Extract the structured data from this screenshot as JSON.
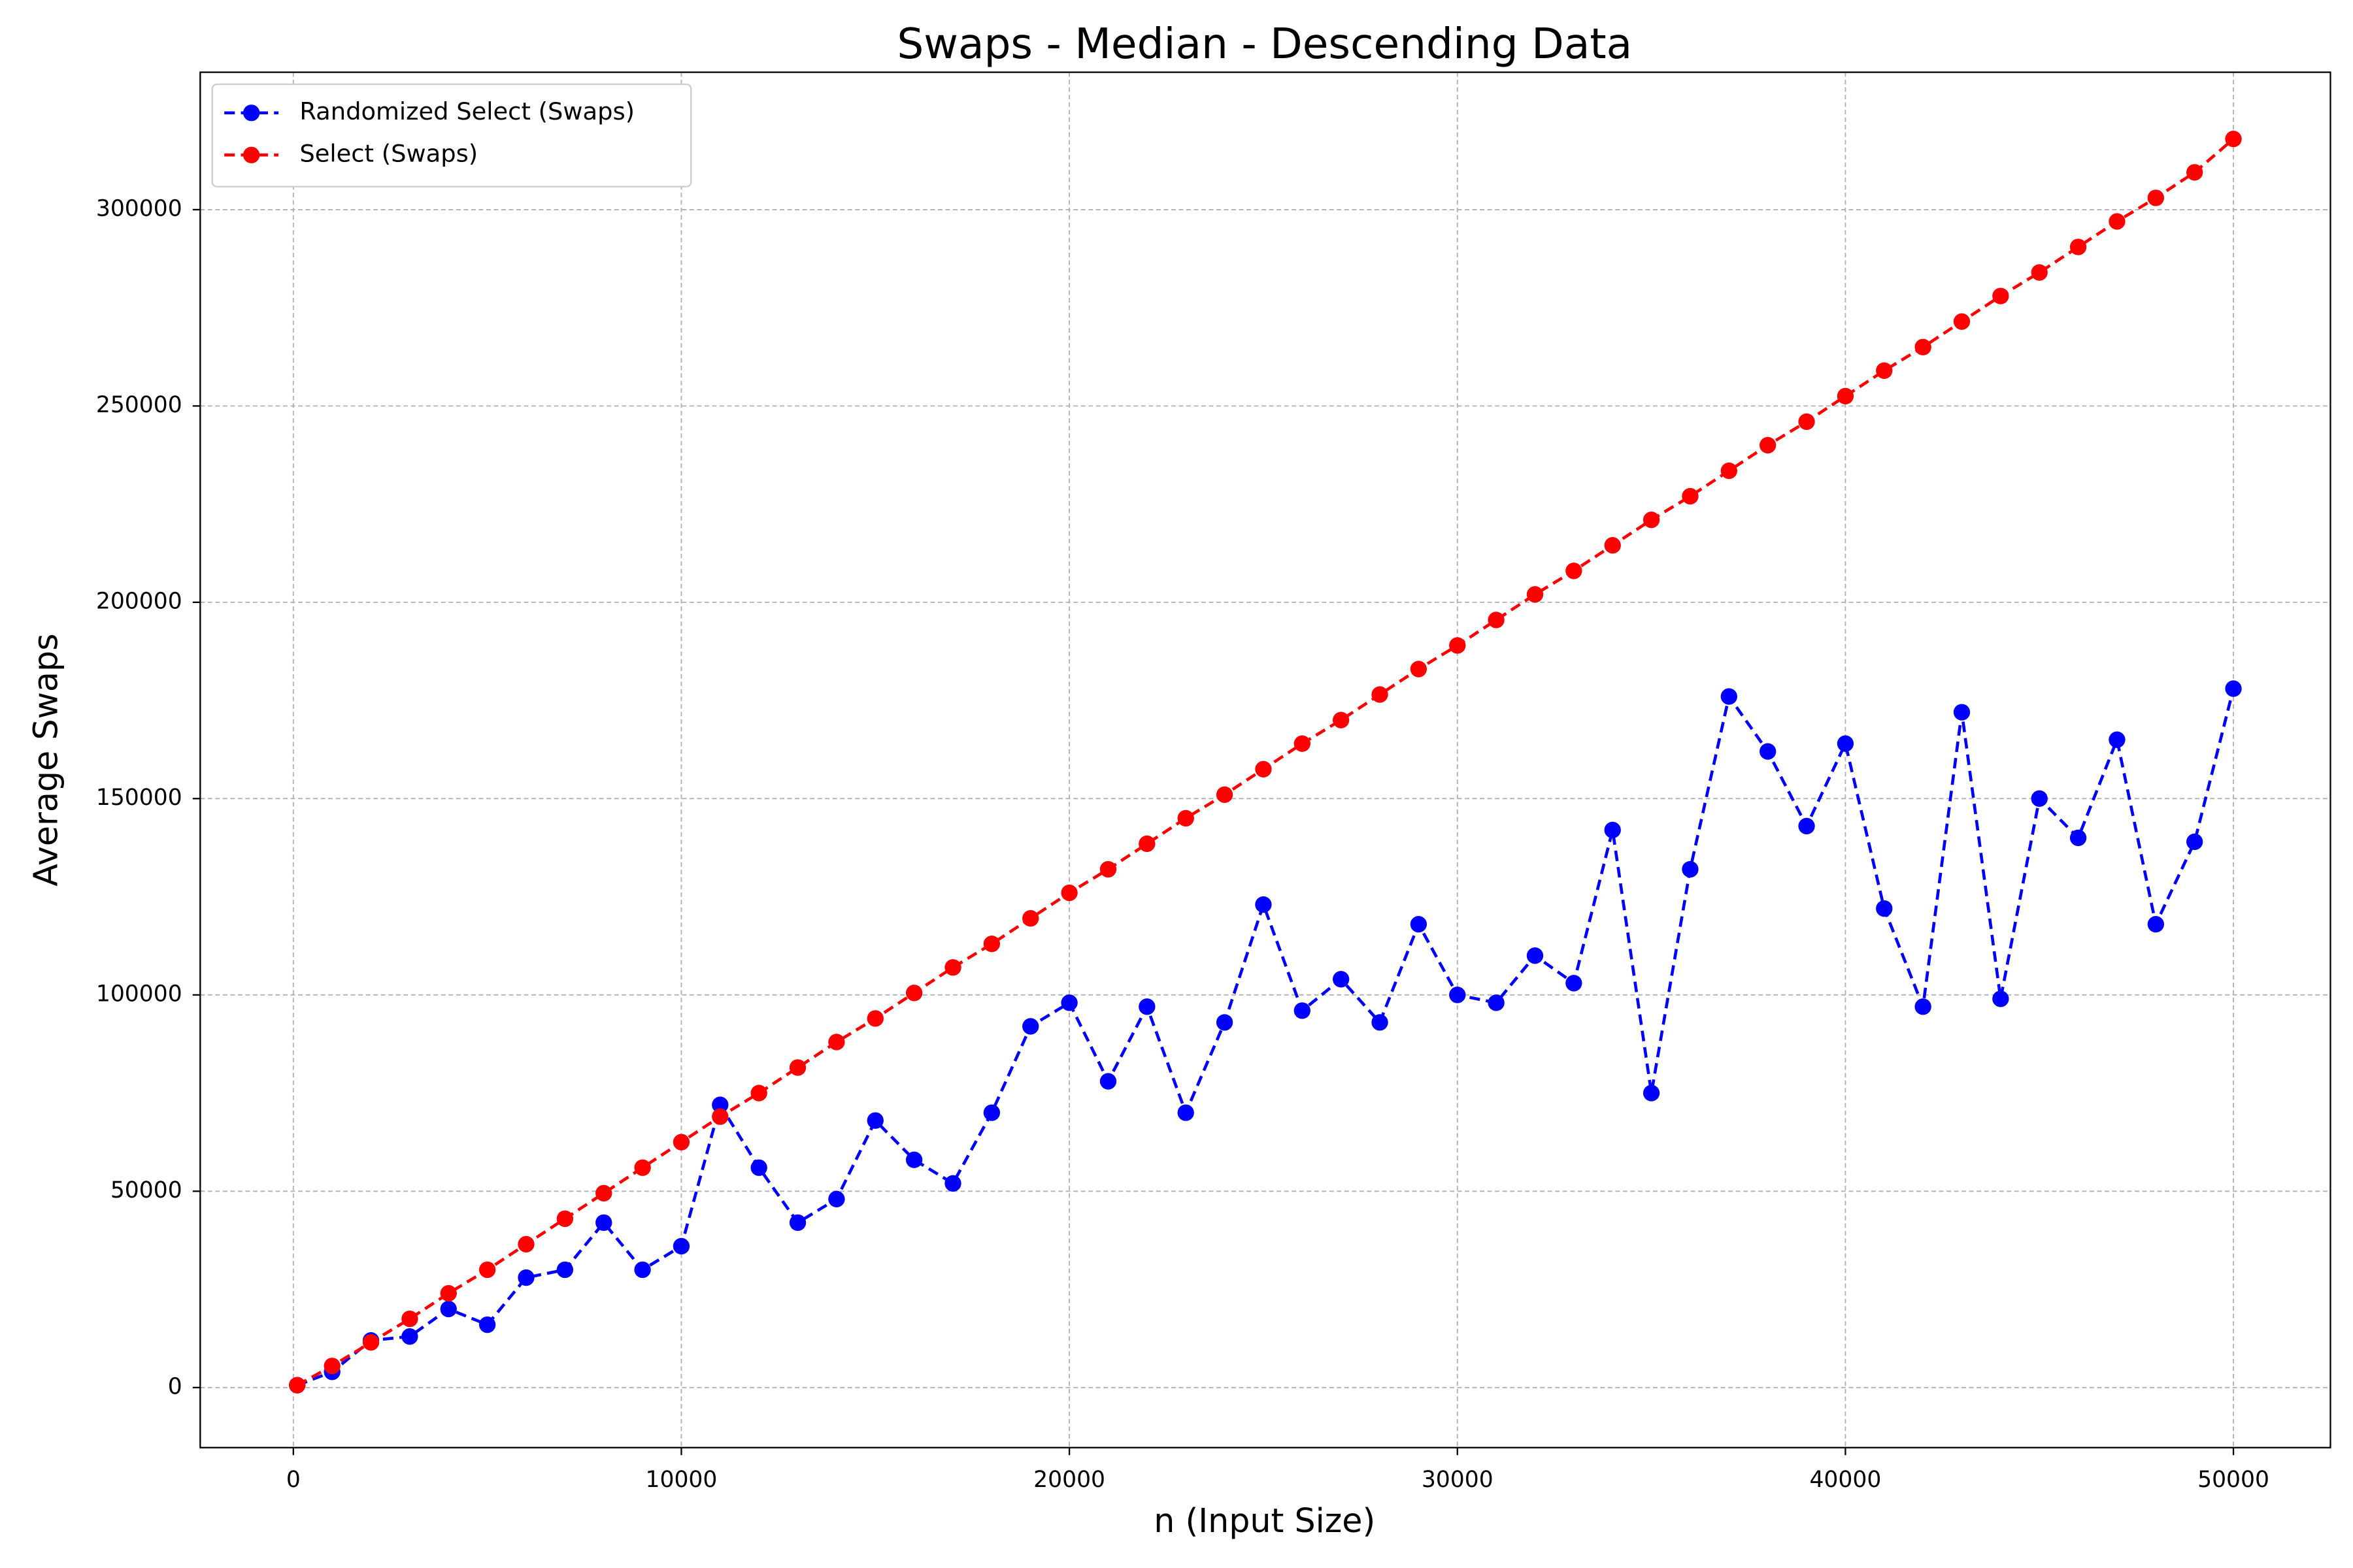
{
  "chart_data": {
    "type": "line",
    "title": "Swaps - Median - Descending Data",
    "x_label": "n (Input Size)",
    "y_label": "Average Swaps",
    "x": [
      100,
      1000,
      2000,
      3000,
      4000,
      5000,
      6000,
      7000,
      8000,
      9000,
      10000,
      11000,
      12000,
      13000,
      14000,
      15000,
      16000,
      17000,
      18000,
      19000,
      20000,
      21000,
      22000,
      23000,
      24000,
      25000,
      26000,
      27000,
      28000,
      29000,
      30000,
      31000,
      32000,
      33000,
      34000,
      35000,
      36000,
      37000,
      38000,
      39000,
      40000,
      41000,
      42000,
      43000,
      44000,
      45000,
      46000,
      47000,
      48000,
      49000,
      50000
    ],
    "series": [
      {
        "name": "Randomized Select (Swaps)",
        "color": "#0000ff",
        "values": [
          600,
          4000,
          12000,
          13000,
          20000,
          16000,
          28000,
          30000,
          42000,
          30000,
          36000,
          72000,
          56000,
          42000,
          48000,
          68000,
          58000,
          52000,
          70000,
          92000,
          98000,
          78000,
          97000,
          70000,
          93000,
          123000,
          96000,
          104000,
          93000,
          118000,
          100000,
          98000,
          110000,
          103000,
          142000,
          75000,
          132000,
          176000,
          162000,
          143000,
          164000,
          122000,
          97000,
          172000,
          99000,
          150000,
          140000,
          165000,
          118000,
          139000,
          178000
        ]
      },
      {
        "name": "Select (Swaps)",
        "color": "#ff0000",
        "values": [
          600,
          5500,
          11500,
          17500,
          24000,
          30000,
          36500,
          43000,
          49500,
          56000,
          62500,
          69000,
          75000,
          81500,
          88000,
          94000,
          100500,
          107000,
          113000,
          119500,
          126000,
          132000,
          138500,
          145000,
          151000,
          157500,
          164000,
          170000,
          176500,
          183000,
          189000,
          195500,
          202000,
          208000,
          214500,
          221000,
          227000,
          233500,
          240000,
          246000,
          252500,
          259000,
          265000,
          271500,
          278000,
          284000,
          290500,
          297000,
          303000,
          309500,
          318000
        ]
      }
    ],
    "xlim": [
      -2400,
      52500
    ],
    "ylim": [
      -15300,
      335000
    ],
    "xticks": [
      0,
      10000,
      20000,
      30000,
      40000,
      50000
    ],
    "yticks": [
      0,
      50000,
      100000,
      150000,
      200000,
      250000,
      300000
    ],
    "grid": true,
    "legend": "upper-left"
  }
}
